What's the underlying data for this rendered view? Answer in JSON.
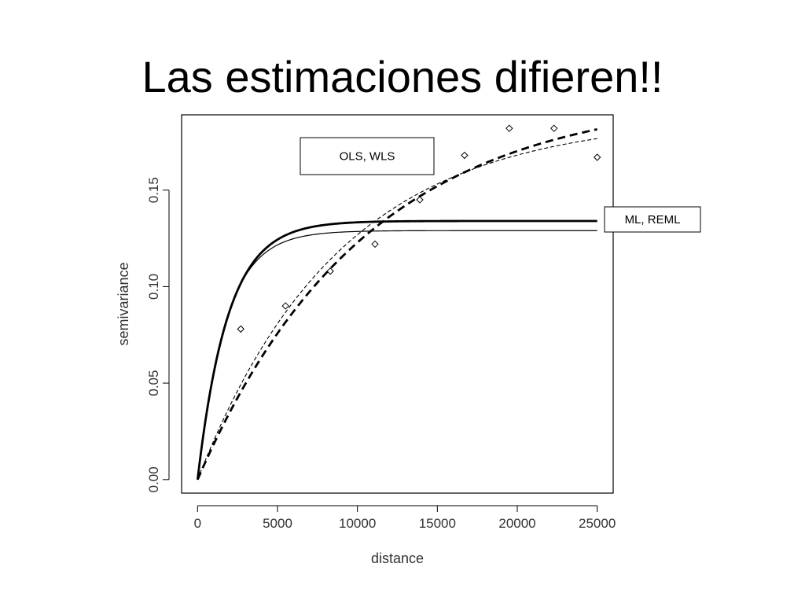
{
  "slide": {
    "title": "Las estimaciones difieren!!"
  },
  "chart_data": {
    "type": "line",
    "title": "",
    "xlabel": "distance",
    "ylabel": "semivariance",
    "xlim": [
      -1000,
      26000
    ],
    "ylim": [
      -0.007,
      0.189
    ],
    "xticks": [
      0,
      5000,
      10000,
      15000,
      20000,
      25000
    ],
    "xtick_labels": [
      "0",
      "5000",
      "10000",
      "15000",
      "20000",
      "25000"
    ],
    "yticks": [
      0.0,
      0.05,
      0.1,
      0.15
    ],
    "ytick_labels": [
      "0.00",
      "0.05",
      "0.10",
      "0.15"
    ],
    "grid": false,
    "points": {
      "x": [
        2700,
        5500,
        8300,
        11100,
        13900,
        16700,
        19500,
        22300,
        25000
      ],
      "y": [
        0.078,
        0.09,
        0.108,
        0.122,
        0.145,
        0.168,
        0.182,
        0.182,
        0.167
      ]
    },
    "series": [
      {
        "model": "exponential",
        "sill": 0.134,
        "range": 1900,
        "style": "thick-solid"
      },
      {
        "model": "exponential",
        "sill": 0.129,
        "range": 1750,
        "style": "thin-solid"
      },
      {
        "model": "exponential",
        "sill": 0.2,
        "range": 10500,
        "style": "thick-dashed"
      },
      {
        "model": "exponential",
        "sill": 0.188,
        "range": 8900,
        "style": "thin-dashed"
      }
    ],
    "annotations": [
      {
        "text": "OLS, WLS",
        "anchor": "inside-top-center"
      },
      {
        "text": "ML, REML",
        "anchor": "outside-right"
      }
    ]
  }
}
